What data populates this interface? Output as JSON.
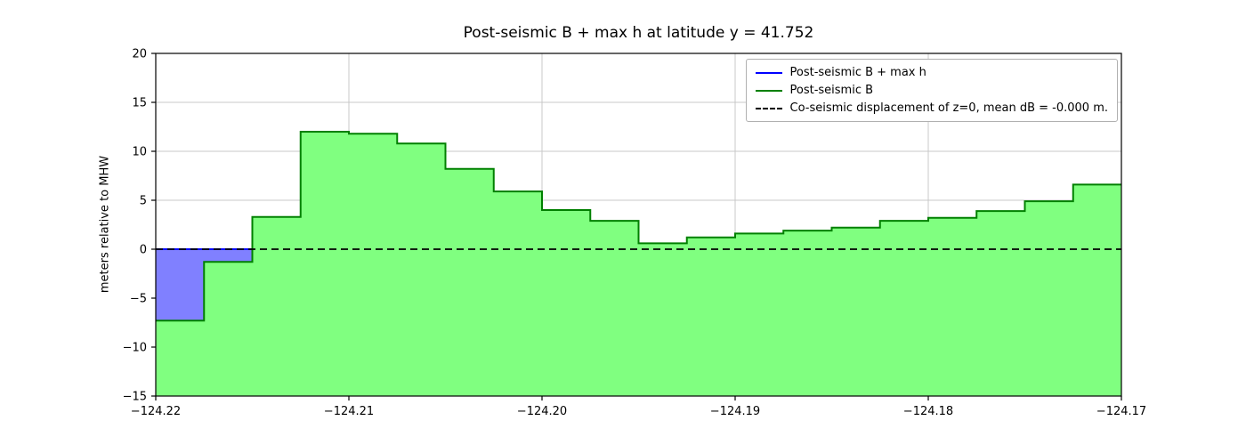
{
  "chart": {
    "title": "Post-seismic B + max h at latitude y = 41.752",
    "ylabel": "meters relative to MHW",
    "legend": [
      {
        "label": "Post-seismic B + max h",
        "color": "#0000ff",
        "dash": false
      },
      {
        "label": "Post-seismic B",
        "color": "#008000",
        "dash": false
      },
      {
        "label": "Co-seismic displacement of z=0, mean dB = -0.000 m.",
        "color": "#000000",
        "dash": true
      }
    ]
  },
  "chart_data": {
    "type": "area",
    "title": "Post-seismic B + max h at latitude y = 41.752",
    "xlabel": "",
    "ylabel": "meters relative to MHW",
    "xlim": [
      -124.22,
      -124.17
    ],
    "ylim": [
      -15,
      20
    ],
    "grid": true,
    "legend_position": "upper right",
    "x_start": -124.22,
    "x_step": 0.0025,
    "series": [
      {
        "name": "Post-seismic B",
        "values": [
          -7.3,
          -1.3,
          3.3,
          12.0,
          11.8,
          10.8,
          8.2,
          5.9,
          4.0,
          2.9,
          0.6,
          1.2,
          1.6,
          1.9,
          2.2,
          2.9,
          3.2,
          3.9,
          4.9,
          6.6
        ]
      },
      {
        "name": "Post-seismic B + max h",
        "values": [
          0.0,
          0.0,
          3.3,
          12.0,
          11.8,
          10.8,
          8.2,
          5.9,
          4.0,
          2.9,
          0.6,
          1.2,
          1.6,
          1.9,
          2.2,
          2.9,
          3.2,
          3.9,
          4.9,
          6.6
        ]
      },
      {
        "name": "Co-seismic displacement of z=0",
        "constant": 0.0
      }
    ],
    "x_ticks": [
      {
        "v": -124.22,
        "label": "−124.22"
      },
      {
        "v": -124.21,
        "label": "−124.21"
      },
      {
        "v": -124.2,
        "label": "−124.20"
      },
      {
        "v": -124.19,
        "label": "−124.19"
      },
      {
        "v": -124.18,
        "label": "−124.18"
      },
      {
        "v": -124.17,
        "label": "−124.17"
      }
    ],
    "y_ticks": [
      {
        "v": -15,
        "label": "−15"
      },
      {
        "v": -10,
        "label": "−10"
      },
      {
        "v": -5,
        "label": "−5"
      },
      {
        "v": 0,
        "label": "0"
      },
      {
        "v": 5,
        "label": "5"
      },
      {
        "v": 10,
        "label": "10"
      },
      {
        "v": 15,
        "label": "15"
      },
      {
        "v": 20,
        "label": "20"
      }
    ],
    "colors": {
      "land_fill": "#80ff80",
      "land_edge": "#008000",
      "water_fill": "#8080ff",
      "water_edge": "#0000ff",
      "zero_line": "#000000",
      "grid": "#c9c9c9",
      "frame": "#000000"
    }
  }
}
